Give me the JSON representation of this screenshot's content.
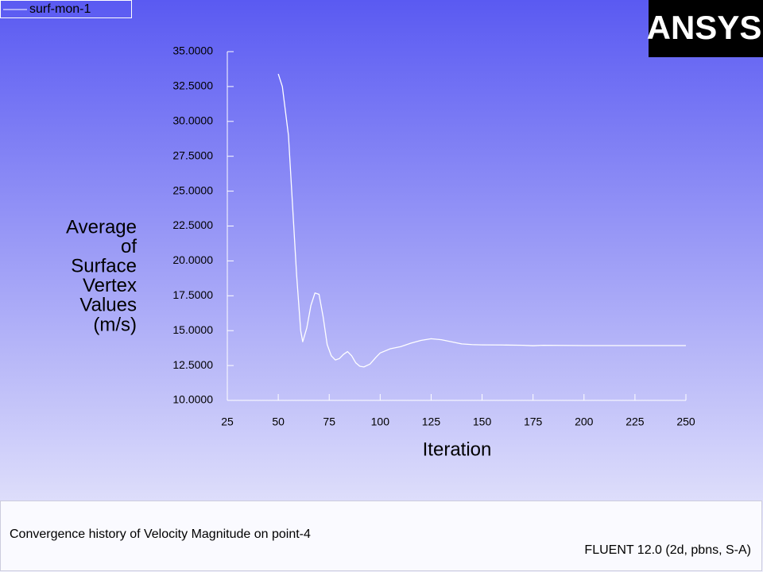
{
  "chart_data": {
    "type": "line",
    "x_label": "Iteration",
    "y_label_lines": [
      "Average",
      "of",
      "Surface",
      "Vertex",
      "Values",
      "(m/s)"
    ],
    "logo": "ANSYS",
    "caption": "Convergence history of Velocity Magnitude on point-4",
    "solver": "FLUENT 12.0 (2d, pbns, S-A)",
    "legend_position": "top-left",
    "x": [
      50,
      52,
      55,
      57,
      59,
      61,
      62,
      64,
      66,
      68,
      70,
      72,
      74,
      76,
      78,
      80,
      82,
      84,
      86,
      88,
      90,
      92,
      95,
      98,
      100,
      105,
      110,
      115,
      120,
      125,
      130,
      135,
      140,
      145,
      150,
      160,
      170,
      175,
      180,
      200,
      225,
      250
    ],
    "series": [
      {
        "name": "surf-mon-1",
        "color": "#ffffff",
        "values": [
          33.4,
          32.5,
          29,
          24,
          19,
          15,
          14.2,
          15.2,
          16.8,
          17.7,
          17.6,
          16,
          14,
          13.2,
          12.9,
          13,
          13.3,
          13.5,
          13.2,
          12.7,
          12.45,
          12.4,
          12.6,
          13.1,
          13.4,
          13.7,
          13.85,
          14.1,
          14.3,
          14.42,
          14.35,
          14.2,
          14.05,
          14,
          13.98,
          13.97,
          13.95,
          13.92,
          13.95,
          13.93,
          13.93,
          13.93
        ]
      }
    ],
    "xlim": [
      25,
      250
    ],
    "xticks": [
      25,
      50,
      75,
      100,
      125,
      150,
      175,
      200,
      225,
      250
    ],
    "ylim": [
      10,
      35
    ],
    "yticks": [
      {
        "value": 10,
        "label": "10.0000"
      },
      {
        "value": 12.5,
        "label": "12.5000"
      },
      {
        "value": 15,
        "label": "15.0000"
      },
      {
        "value": 17.5,
        "label": "17.5000"
      },
      {
        "value": 20,
        "label": "20.0000"
      },
      {
        "value": 22.5,
        "label": "22.5000"
      },
      {
        "value": 25,
        "label": "25.0000"
      },
      {
        "value": 27.5,
        "label": "27.5000"
      },
      {
        "value": 30,
        "label": "30.0000"
      },
      {
        "value": 32.5,
        "label": "32.5000"
      },
      {
        "value": 35,
        "label": "35.0000"
      }
    ]
  }
}
